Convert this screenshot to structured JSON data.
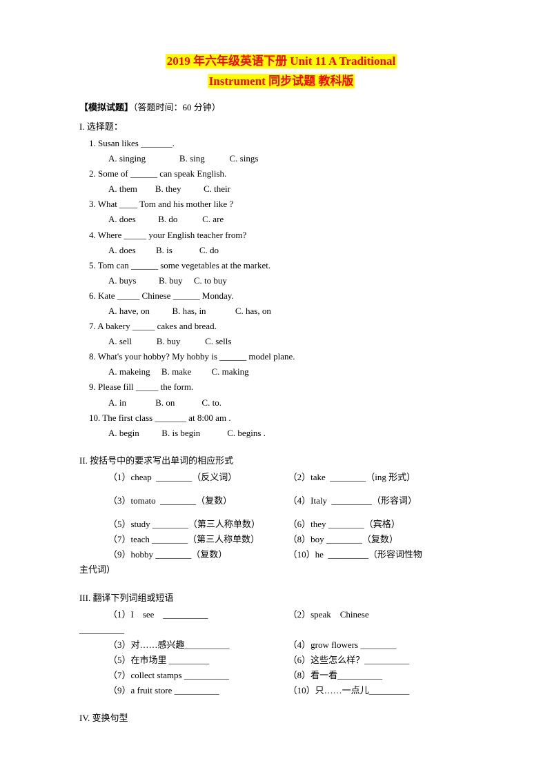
{
  "title": {
    "line1": "2019 年六年级英语下册 Unit 11 A Traditional",
    "line2": "Instrument 同步试题 教科版"
  },
  "header": {
    "label": "【模拟试题】",
    "note": "（答题时间：60 分钟）"
  },
  "s1": {
    "title": "I. 选择题：",
    "q1": "1. Susan likes _______.",
    "q1a": "A. singing",
    "q1b": "B. sing",
    "q1c": "C. sings",
    "q2": "2. Some of ______ can speak English.",
    "q2a": "A. them",
    "q2b": "B. they",
    "q2c": "C. their",
    "q3": "3. What ____ Tom and his mother like ?",
    "q3a": "A. does",
    "q3b": "B. do",
    "q3c": "C. are",
    "q4": "4. Where _____ your English teacher from?",
    "q4a": "A. does",
    "q4b": "B. is",
    "q4c": "C. do",
    "q5": "5. Tom can ______ some vegetables at the market.",
    "q5a": "A. buys",
    "q5b": "B. buy",
    "q5c": "C. to buy",
    "q6": "6. Kate _____ Chinese ______ Monday.",
    "q6a": "A. have, on",
    "q6b": "B. has, in",
    "q6c": "C. has, on",
    "q7": "7. A bakery _____ cakes and bread.",
    "q7a": "A. sell",
    "q7b": "B. buy",
    "q7c": "C. sells",
    "q8": "8. What's your hobby? My hobby is ______ model plane.",
    "q8a": "A. makeing",
    "q8b": "B. make",
    "q8c": "C. making",
    "q9": "9. Please fill _____ the form.",
    "q9a": "A. in",
    "q9b": "B. on",
    "q9c": "C. to.",
    "q10": "10. The first class _______ at 8:00 am .",
    "q10a": "A. begin",
    "q10b": "B. is begin",
    "q10c": "C. begins ."
  },
  "s2": {
    "title": "II. 按括号中的要求写出单词的相应形式",
    "i1": "（1）cheap  ________（反义词）",
    "i2": "（2）take  ________（ing 形式）",
    "i3": "（3）tomato  ________（复数）",
    "i4": "（4）Italy  _________（形容词）",
    "i5": "（5）study ________（第三人称单数）",
    "i6": "（6）they ________（宾格）",
    "i7": "（7）teach ________（第三人称单数）",
    "i8": "（8）boy ________（复数）",
    "i9": "（9）hobby ________（复数）",
    "i10": "（10）he  _________（形容词性物",
    "i10b": "主代词）"
  },
  "s3": {
    "title": "III. 翻译下列词组或短语",
    "i1a": "（1）I    see    __________",
    "i1b": "（2）speak    Chinese",
    "i2b": "__________",
    "i3": "（3）对……感兴趣__________",
    "i4": "（4）grow flowers ________",
    "i5": "（5）在市场里 _________",
    "i6": "（6）这些怎么样？__________",
    "i7": "（7）collect stamps __________",
    "i8": "（8）看一看__________",
    "i9": "（9）a fruit store __________",
    "i10": "（10）只……一点儿_________"
  },
  "s4": {
    "title": "IV. 变换句型"
  },
  "colors": {
    "text": "#000000",
    "background": "#ffffff",
    "title_text": "#ff0000",
    "title_bg": "#ffff00"
  }
}
